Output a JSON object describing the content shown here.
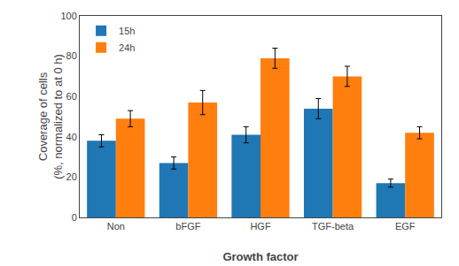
{
  "chart_data": {
    "type": "bar",
    "categories": [
      "Non",
      "bFGF",
      "HGF",
      "TGF-beta",
      "EGF"
    ],
    "series": [
      {
        "name": "15h",
        "values": [
          38,
          27,
          41,
          54,
          17
        ],
        "errors": [
          3,
          3,
          4,
          5,
          2
        ]
      },
      {
        "name": "24h",
        "values": [
          49,
          57,
          79,
          70,
          42
        ],
        "errors": [
          4,
          6,
          5,
          5,
          3
        ]
      }
    ],
    "xlabel": "Growth factor",
    "ylabel": "Coverage of cells\n(%, normalized to at 0 h)",
    "ylim": [
      0,
      100
    ],
    "yticks": [
      0,
      20,
      40,
      60,
      80,
      100
    ],
    "grid": false,
    "legend": "upper left"
  }
}
